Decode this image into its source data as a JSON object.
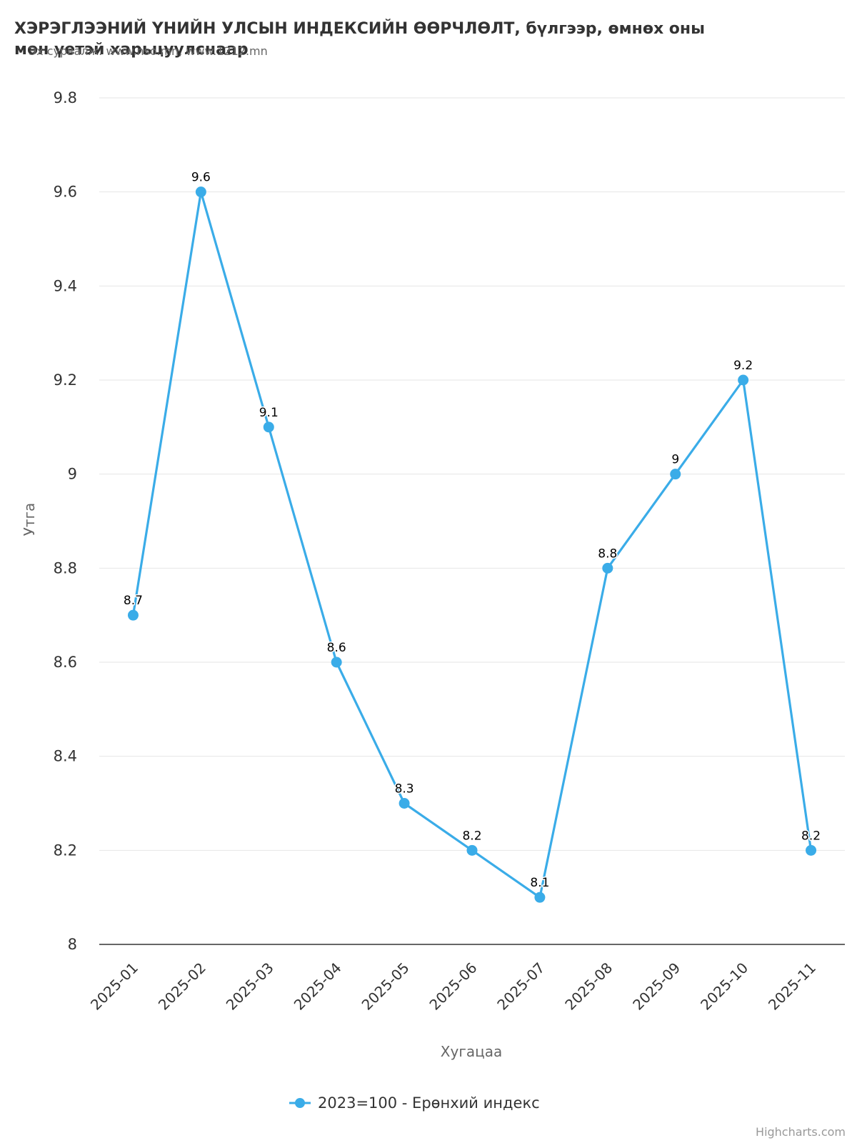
{
  "chart_data": {
    "type": "line",
    "title": "ХЭРЭГЛЭЭНИЙ ҮНИЙН УЛСЫН ИНДЕКСИЙН ӨӨРЧЛӨЛТ, бүлгээр, өмнөх оны мөн үетэй харьцуулснаар",
    "subtitle": "Эх сурвалж: www.nso.mn, www.1212.mn",
    "xlabel": "Хугацаа",
    "ylabel": "Утга",
    "categories": [
      "2025-01",
      "2025-02",
      "2025-03",
      "2025-04",
      "2025-05",
      "2025-06",
      "2025-07",
      "2025-08",
      "2025-09",
      "2025-10",
      "2025-11"
    ],
    "series": [
      {
        "name": "2023=100 - Ерөнхий индекс",
        "color": "#3aace8",
        "values": [
          8.7,
          9.6,
          9.1,
          8.6,
          8.3,
          8.2,
          8.1,
          8.8,
          9.0,
          9.2,
          8.2
        ],
        "data_labels": [
          "8.7",
          "9.6",
          "9.1",
          "8.6",
          "8.3",
          "8.2",
          "8.1",
          "8.8",
          "9",
          "9.2",
          "8.2"
        ]
      }
    ],
    "ylim": [
      8,
      9.8
    ],
    "yticks": [
      "8",
      "8.2",
      "8.4",
      "8.6",
      "8.8",
      "9",
      "9.2",
      "9.4",
      "9.6",
      "9.8"
    ],
    "grid": true,
    "legend_position": "bottom-center",
    "credits": "Highcharts.com"
  }
}
